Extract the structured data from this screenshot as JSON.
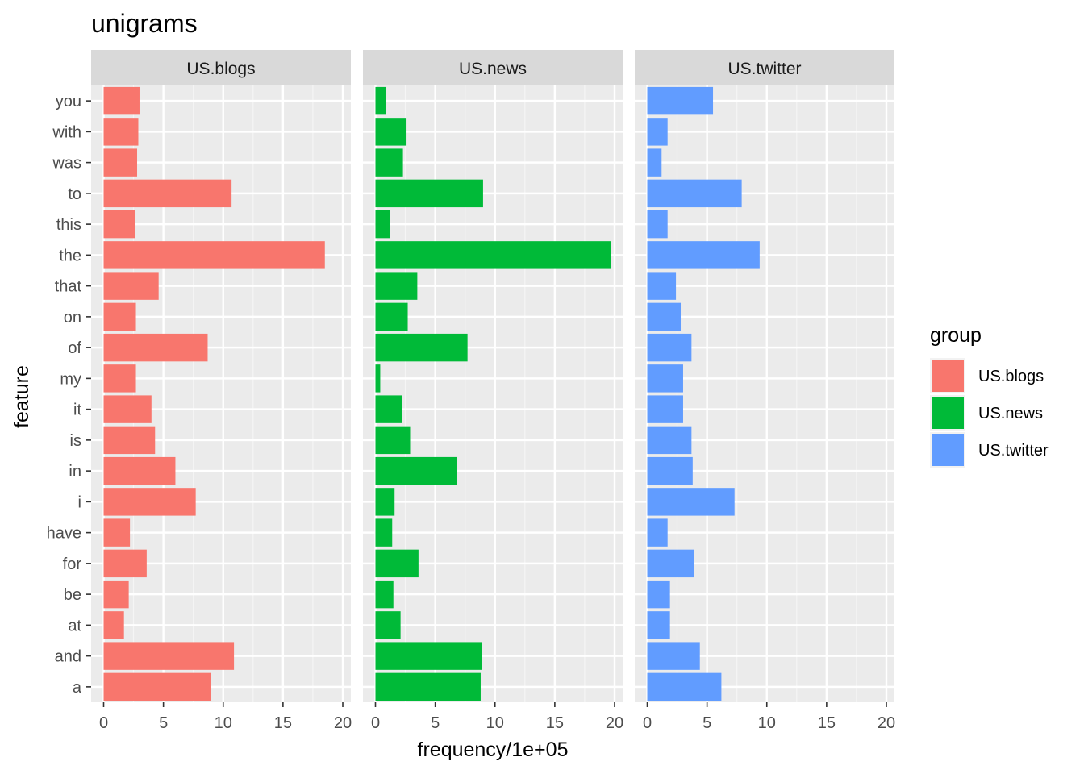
{
  "chart_data": {
    "type": "bar",
    "orientation": "horizontal",
    "title": "unigrams",
    "xlabel": "frequency/1e+05",
    "ylabel": "feature",
    "xlim": [
      0,
      20
    ],
    "xticks": [
      "0",
      "5",
      "10",
      "15",
      "20"
    ],
    "grid": true,
    "legend": {
      "title": "group",
      "position": "right"
    },
    "categories": [
      "you",
      "with",
      "was",
      "to",
      "this",
      "the",
      "that",
      "on",
      "of",
      "my",
      "it",
      "is",
      "in",
      "i",
      "have",
      "for",
      "be",
      "at",
      "and",
      "a"
    ],
    "series": [
      {
        "name": "US.blogs",
        "color": "#F8766D",
        "values": [
          3.0,
          2.9,
          2.8,
          10.7,
          2.6,
          18.5,
          4.6,
          2.7,
          8.7,
          2.7,
          4.0,
          4.3,
          6.0,
          7.7,
          2.2,
          3.6,
          2.1,
          1.7,
          10.9,
          9.0
        ]
      },
      {
        "name": "US.news",
        "color": "#00BA38",
        "values": [
          0.9,
          2.6,
          2.3,
          9.0,
          1.2,
          19.7,
          3.5,
          2.7,
          7.7,
          0.4,
          2.2,
          2.9,
          6.8,
          1.6,
          1.4,
          3.6,
          1.5,
          2.1,
          8.9,
          8.8
        ]
      },
      {
        "name": "US.twitter",
        "color": "#619CFF",
        "values": [
          5.5,
          1.7,
          1.2,
          7.9,
          1.7,
          9.4,
          2.4,
          2.8,
          3.7,
          3.0,
          3.0,
          3.7,
          3.8,
          7.3,
          1.7,
          3.9,
          1.9,
          1.9,
          4.4,
          6.2
        ]
      }
    ]
  }
}
